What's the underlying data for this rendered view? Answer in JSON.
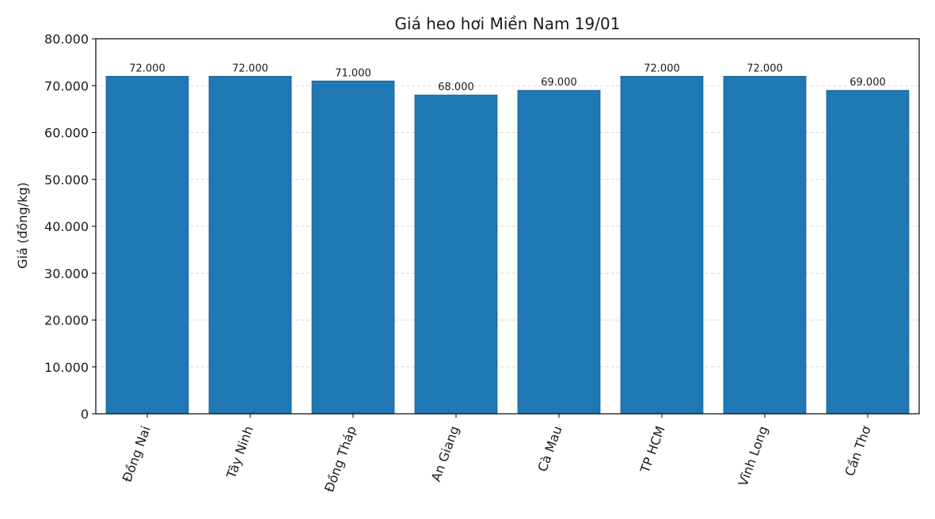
{
  "colors": {
    "bar": "#1f77b4",
    "bar_edge": "#1a5f91"
  },
  "chart_data": {
    "type": "bar",
    "title": "Giá heo hơi Miền Nam 19/01",
    "xlabel": "",
    "ylabel": "Giá (đồng/kg)",
    "categories": [
      "Đồng Nai",
      "Tây Ninh",
      "Đồng Tháp",
      "An Giang",
      "Cà Mau",
      "TP HCM",
      "Vĩnh Long",
      "Cần Thơ"
    ],
    "values": [
      72000,
      72000,
      71000,
      68000,
      69000,
      72000,
      72000,
      69000
    ],
    "value_labels": [
      "72.000",
      "72.000",
      "71.000",
      "68.000",
      "69.000",
      "72.000",
      "72.000",
      "69.000"
    ],
    "ylim": [
      0,
      80000
    ],
    "yticks": [
      0,
      10000,
      20000,
      30000,
      40000,
      50000,
      60000,
      70000,
      80000
    ],
    "ytick_labels": [
      "0",
      "10.000",
      "20.000",
      "30.000",
      "40.000",
      "50.000",
      "60.000",
      "70.000",
      "80.000"
    ],
    "grid": "y-dashed",
    "legend": "none"
  }
}
